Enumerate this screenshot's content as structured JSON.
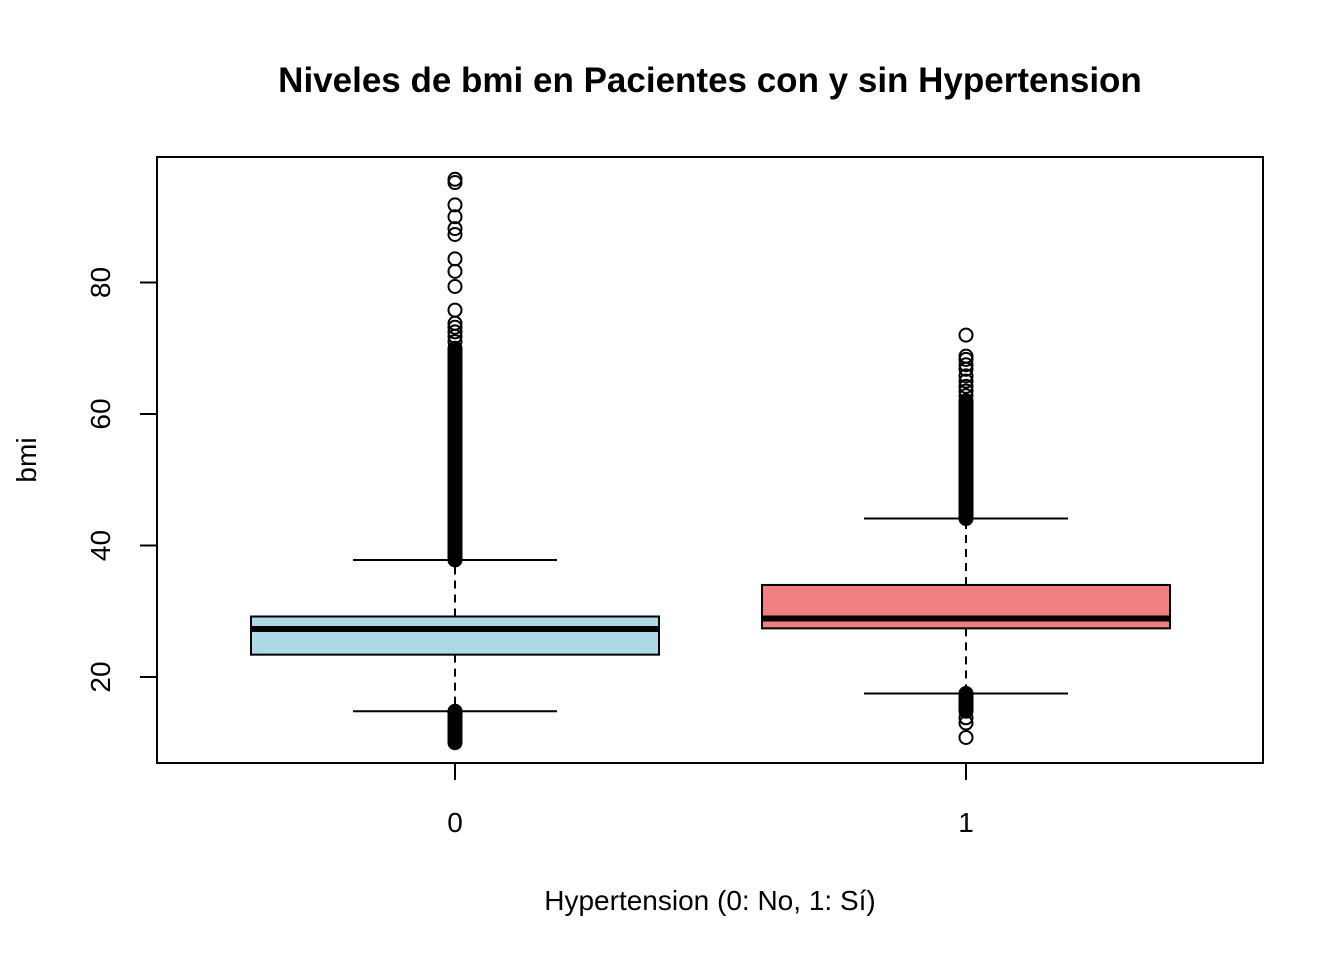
{
  "chart_data": {
    "type": "boxplot",
    "title": "Niveles de bmi en Pacientes con y sin Hypertension",
    "xlabel": "Hypertension (0: No, 1: Sí)",
    "ylabel": "bmi",
    "ylim": [
      8.5,
      98
    ],
    "yticks": [
      "20",
      "40",
      "60",
      "80"
    ],
    "categories": [
      "0",
      "1"
    ],
    "groups": [
      {
        "name": "0",
        "fill": "#ADD8E6",
        "whisker_low": 14.8,
        "q1": 23.4,
        "median": 27.3,
        "q3": 29.2,
        "whisker_high": 37.8,
        "outliers_dense_low": [
          10.0,
          14.8
        ],
        "outliers_dense_high": [
          37.8,
          70.0
        ],
        "outliers": [
          71.0,
          71.8,
          72.5,
          73.2,
          73.8,
          75.8,
          79.4,
          81.7,
          83.6,
          87.3,
          88.2,
          90.0,
          91.8,
          95.2,
          95.7
        ]
      },
      {
        "name": "1",
        "fill": "#F08080",
        "whisker_low": 17.5,
        "q1": 27.4,
        "median": 28.9,
        "q3": 34.0,
        "whisker_high": 44.1,
        "outliers_dense_low": [
          14.8,
          17.5
        ],
        "outliers_dense_high": [
          44.1,
          62.0
        ],
        "outliers": [
          10.8,
          13.0,
          13.8,
          62.8,
          63.5,
          64.2,
          65.0,
          65.8,
          66.8,
          67.5,
          68.3,
          68.8,
          72.0
        ]
      }
    ]
  }
}
